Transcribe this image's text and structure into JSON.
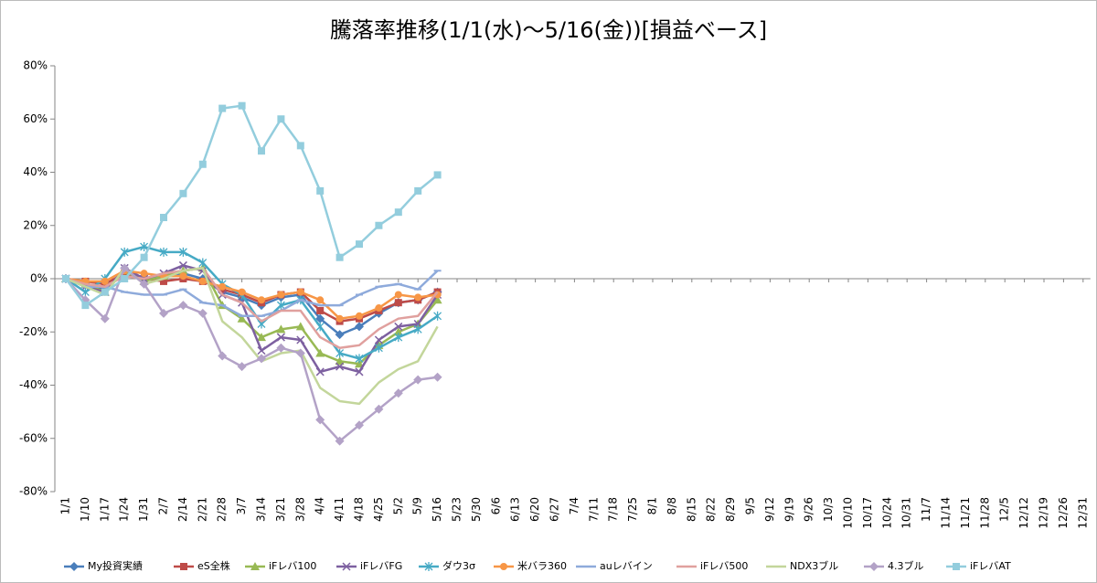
{
  "chart_data": {
    "type": "line",
    "title": "騰落率推移(1/1(水)～5/16(金))[損益ベース]",
    "categories": [
      "1/1",
      "1/10",
      "1/17",
      "1/24",
      "1/31",
      "2/7",
      "2/14",
      "2/21",
      "2/28",
      "3/7",
      "3/14",
      "3/21",
      "3/28",
      "4/4",
      "4/11",
      "4/18",
      "4/25",
      "5/2",
      "5/9",
      "5/16",
      "5/23",
      "5/30",
      "6/6",
      "6/13",
      "6/20",
      "6/27",
      "7/4",
      "7/11",
      "7/18",
      "7/25",
      "8/1",
      "8/8",
      "8/15",
      "8/22",
      "8/29",
      "9/5",
      "9/12",
      "9/19",
      "9/26",
      "10/3",
      "10/10",
      "10/17",
      "10/24",
      "10/31",
      "11/7",
      "11/14",
      "11/21",
      "11/28",
      "12/5",
      "12/12",
      "12/19",
      "12/26",
      "12/31"
    ],
    "ylim": [
      -80,
      80
    ],
    "yticks": [
      {
        "value": -80,
        "label": "-80%"
      },
      {
        "value": -60,
        "label": "-60%"
      },
      {
        "value": -40,
        "label": "-40%"
      },
      {
        "value": -20,
        "label": "-20%"
      },
      {
        "value": 0,
        "label": "0%"
      },
      {
        "value": 20,
        "label": "20%"
      },
      {
        "value": 40,
        "label": "40%"
      },
      {
        "value": 60,
        "label": "60%"
      },
      {
        "value": 80,
        "label": "80%"
      }
    ],
    "series": [
      {
        "name": "My投資実績",
        "color": "#4a7ebb",
        "marker": "diamond",
        "values": [
          0,
          -2,
          -4,
          2,
          0,
          1,
          2,
          0,
          -5,
          -7,
          -10,
          -7,
          -6,
          -15,
          -21,
          -18,
          -13,
          -9,
          -8,
          -5,
          null,
          null,
          null,
          null,
          null,
          null,
          null,
          null,
          null,
          null,
          null,
          null,
          null,
          null,
          null,
          null,
          null,
          null,
          null,
          null,
          null,
          null,
          null,
          null,
          null,
          null,
          null,
          null,
          null,
          null,
          null,
          null,
          null
        ]
      },
      {
        "name": "eS全株",
        "color": "#be4b48",
        "marker": "square",
        "values": [
          0,
          -1,
          -2,
          2,
          0,
          -1,
          0,
          -1,
          -4,
          -6,
          -9,
          -6,
          -5,
          -12,
          -16,
          -15,
          -12,
          -9,
          -8,
          -5,
          null,
          null,
          null,
          null,
          null,
          null,
          null,
          null,
          null,
          null,
          null,
          null,
          null,
          null,
          null,
          null,
          null,
          null,
          null,
          null,
          null,
          null,
          null,
          null,
          null,
          null,
          null,
          null,
          null,
          null,
          null,
          null,
          null
        ]
      },
      {
        "name": "iFレバ100",
        "color": "#98b954",
        "marker": "triangle",
        "values": [
          0,
          -2,
          -5,
          3,
          -1,
          1,
          3,
          4,
          -10,
          -15,
          -22,
          -19,
          -18,
          -28,
          -31,
          -32,
          -25,
          -20,
          -17,
          -8,
          null,
          null,
          null,
          null,
          null,
          null,
          null,
          null,
          null,
          null,
          null,
          null,
          null,
          null,
          null,
          null,
          null,
          null,
          null,
          null,
          null,
          null,
          null,
          null,
          null,
          null,
          null,
          null,
          null,
          null,
          null,
          null,
          null
        ]
      },
      {
        "name": "iFレバFG",
        "color": "#7d60a0",
        "marker": "x",
        "values": [
          0,
          -3,
          -5,
          4,
          0,
          2,
          5,
          3,
          -6,
          -9,
          -27,
          -22,
          -23,
          -35,
          -33,
          -35,
          -23,
          -18,
          -17,
          -6,
          null,
          null,
          null,
          null,
          null,
          null,
          null,
          null,
          null,
          null,
          null,
          null,
          null,
          null,
          null,
          null,
          null,
          null,
          null,
          null,
          null,
          null,
          null,
          null,
          null,
          null,
          null,
          null,
          null,
          null,
          null,
          null,
          null
        ]
      },
      {
        "name": "ダウ3σ",
        "color": "#46aac5",
        "marker": "star",
        "values": [
          0,
          -5,
          0,
          10,
          12,
          10,
          10,
          6,
          -2,
          -6,
          -17,
          -10,
          -8,
          -18,
          -28,
          -30,
          -26,
          -22,
          -19,
          -14,
          null,
          null,
          null,
          null,
          null,
          null,
          null,
          null,
          null,
          null,
          null,
          null,
          null,
          null,
          null,
          null,
          null,
          null,
          null,
          null,
          null,
          null,
          null,
          null,
          null,
          null,
          null,
          null,
          null,
          null,
          null,
          null,
          null
        ]
      },
      {
        "name": "米バラ360",
        "color": "#f79646",
        "marker": "circle",
        "values": [
          0,
          -1,
          -1,
          3,
          2,
          1,
          1,
          -1,
          -3,
          -5,
          -8,
          -6,
          -5,
          -8,
          -15,
          -14,
          -11,
          -6,
          -7,
          -6,
          null,
          null,
          null,
          null,
          null,
          null,
          null,
          null,
          null,
          null,
          null,
          null,
          null,
          null,
          null,
          null,
          null,
          null,
          null,
          null,
          null,
          null,
          null,
          null,
          null,
          null,
          null,
          null,
          null,
          null,
          null,
          null,
          null
        ]
      },
      {
        "name": "auレバイン",
        "color": "#8eaadb",
        "marker": "dash",
        "values": [
          0,
          -3,
          -3,
          -5,
          -6,
          -6,
          -4,
          -9,
          -10,
          -14,
          -14,
          -12,
          -8,
          -10,
          -10,
          -6,
          -3,
          -2,
          -4,
          3,
          null,
          null,
          null,
          null,
          null,
          null,
          null,
          null,
          null,
          null,
          null,
          null,
          null,
          null,
          null,
          null,
          null,
          null,
          null,
          null,
          null,
          null,
          null,
          null,
          null,
          null,
          null,
          null,
          null,
          null,
          null,
          null,
          null
        ]
      },
      {
        "name": "iFレバ500",
        "color": "#e0a09e",
        "marker": "none",
        "values": [
          0,
          -2,
          -3,
          1,
          0,
          2,
          3,
          4,
          -6,
          -9,
          -16,
          -12,
          -12,
          -22,
          -26,
          -25,
          -19,
          -15,
          -14,
          -5,
          null,
          null,
          null,
          null,
          null,
          null,
          null,
          null,
          null,
          null,
          null,
          null,
          null,
          null,
          null,
          null,
          null,
          null,
          null,
          null,
          null,
          null,
          null,
          null,
          null,
          null,
          null,
          null,
          null,
          null,
          null,
          null,
          null
        ]
      },
      {
        "name": "NDX3ブル",
        "color": "#c3d69b",
        "marker": "none",
        "values": [
          0,
          -3,
          -6,
          4,
          -2,
          0,
          3,
          4,
          -16,
          -22,
          -31,
          -28,
          -27,
          -41,
          -46,
          -47,
          -39,
          -34,
          -31,
          -18,
          null,
          null,
          null,
          null,
          null,
          null,
          null,
          null,
          null,
          null,
          null,
          null,
          null,
          null,
          null,
          null,
          null,
          null,
          null,
          null,
          null,
          null,
          null,
          null,
          null,
          null,
          null,
          null,
          null,
          null,
          null,
          null,
          null
        ]
      },
      {
        "name": "4.3ブル",
        "color": "#b3a2c7",
        "marker": "diamond",
        "values": [
          0,
          -8,
          -15,
          4,
          -2,
          -13,
          -10,
          -13,
          -29,
          -33,
          -30,
          -26,
          -28,
          -53,
          -61,
          -55,
          -49,
          -43,
          -38,
          -37,
          null,
          null,
          null,
          null,
          null,
          null,
          null,
          null,
          null,
          null,
          null,
          null,
          null,
          null,
          null,
          null,
          null,
          null,
          null,
          null,
          null,
          null,
          null,
          null,
          null,
          null,
          null,
          null,
          null,
          null,
          null,
          null,
          null
        ]
      },
      {
        "name": "iFレバAT",
        "color": "#93cddd",
        "marker": "square",
        "values": [
          0,
          -10,
          -5,
          0,
          8,
          23,
          32,
          43,
          64,
          65,
          48,
          60,
          50,
          33,
          8,
          13,
          20,
          25,
          33,
          39,
          null,
          null,
          null,
          null,
          null,
          null,
          null,
          null,
          null,
          null,
          null,
          null,
          null,
          null,
          null,
          null,
          null,
          null,
          null,
          null,
          null,
          null,
          null,
          null,
          null,
          null,
          null,
          null,
          null,
          null,
          null,
          null,
          null
        ]
      }
    ]
  }
}
